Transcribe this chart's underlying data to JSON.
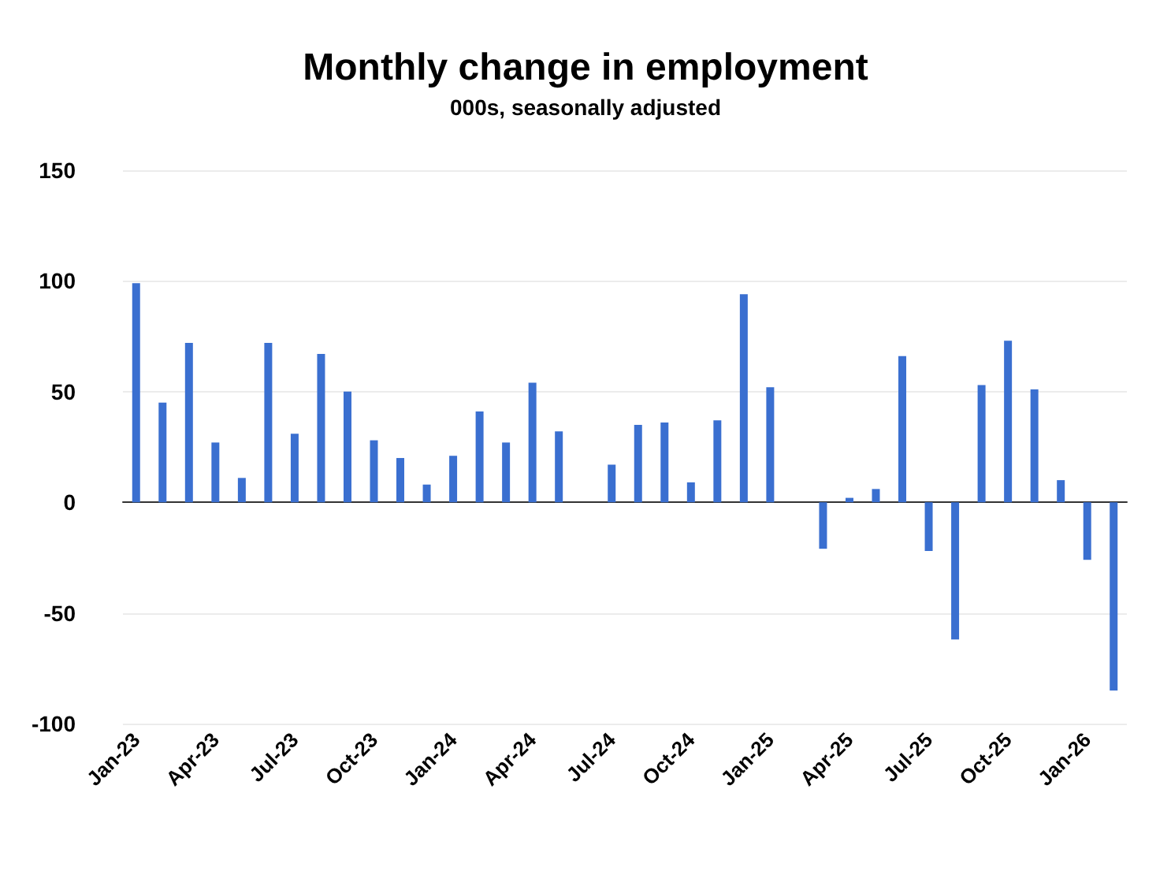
{
  "chart_data": {
    "type": "bar",
    "title": "Monthly change in employment",
    "subtitle": "000s, seasonally adjusted",
    "categories": [
      "Jan-23",
      null,
      null,
      "Apr-23",
      null,
      null,
      "Jul-23",
      null,
      null,
      "Oct-23",
      null,
      null,
      "Jan-24",
      null,
      null,
      "Apr-24",
      null,
      null,
      "Jul-24",
      null,
      null,
      "Oct-24",
      null,
      null,
      "Jan-25",
      null,
      null,
      "Apr-25",
      null,
      null,
      "Jul-25",
      null,
      null,
      "Oct-25",
      null,
      null,
      "Jan-26",
      null
    ],
    "values": [
      99,
      45,
      72,
      27,
      11,
      72,
      31,
      67,
      50,
      28,
      20,
      8,
      21,
      41,
      27,
      54,
      32,
      0,
      17,
      35,
      36,
      9,
      37,
      94,
      52,
      0,
      -21,
      2,
      6,
      66,
      -22,
      -62,
      53,
      73,
      51,
      10,
      -26,
      -85
    ],
    "color": "#3a6fd0",
    "ylim": [
      -100,
      150
    ],
    "yticks": [
      -100,
      -50,
      0,
      50,
      100,
      150
    ],
    "grid": "y"
  }
}
